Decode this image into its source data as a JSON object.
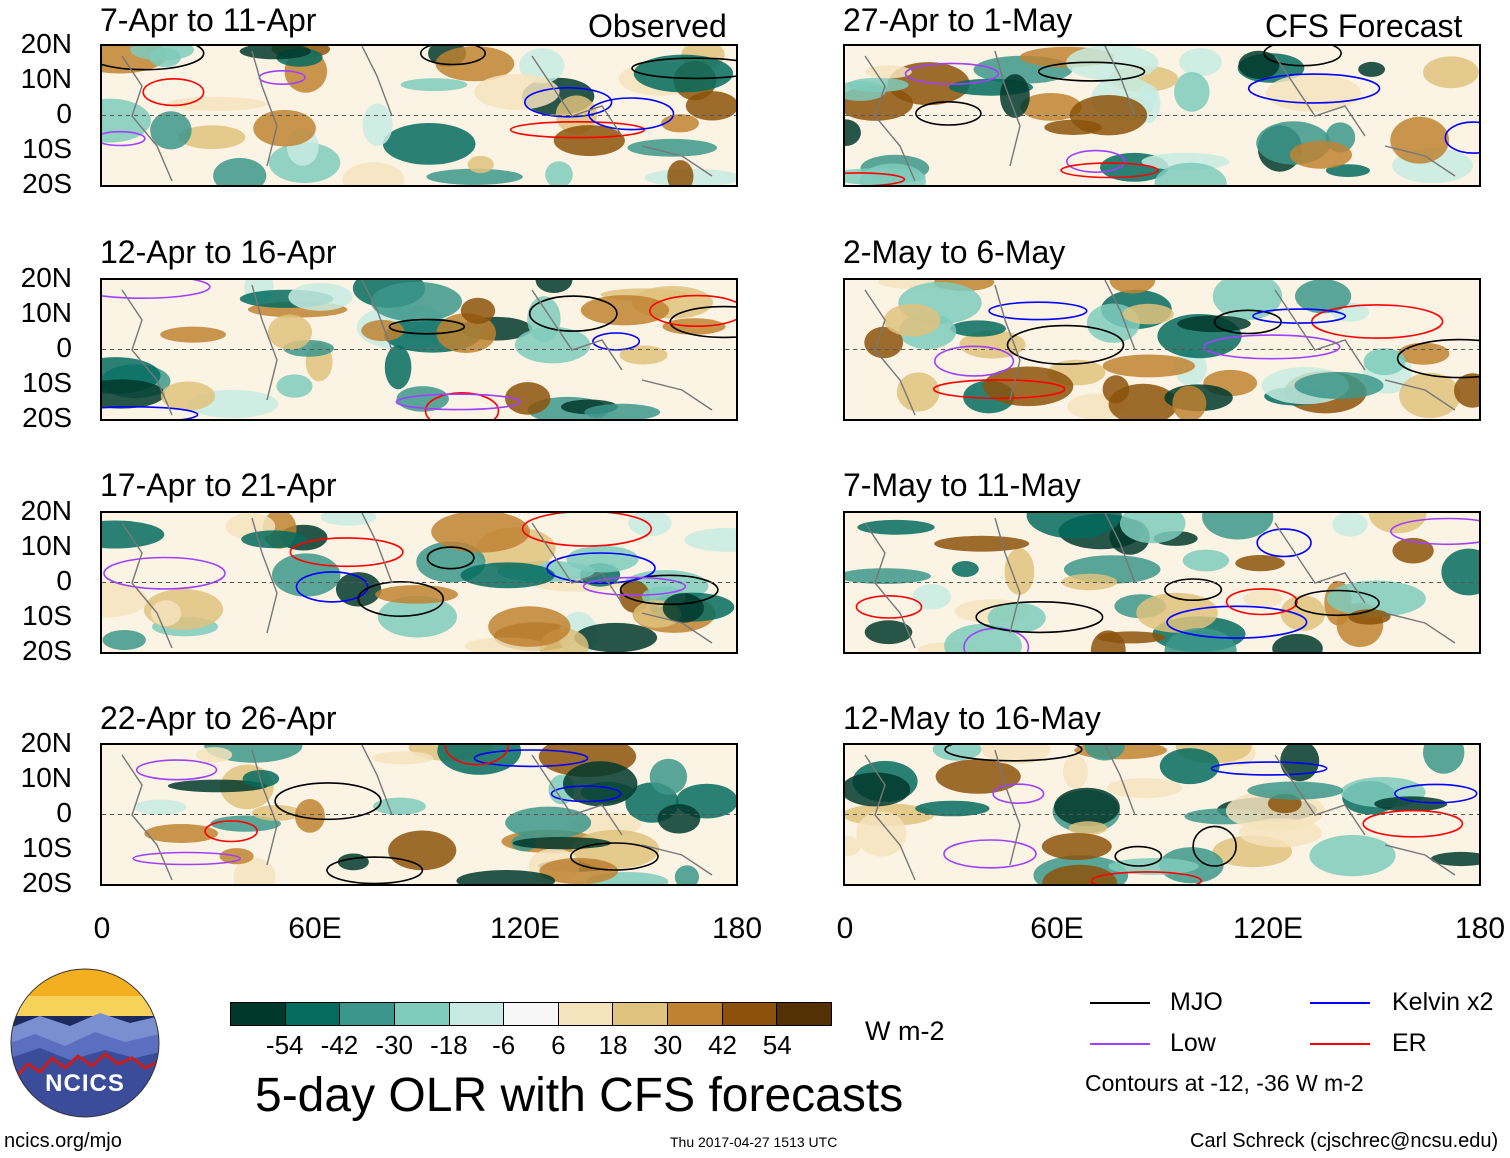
{
  "title": "5-day OLR with CFS forecasts",
  "units": "W m-2",
  "observed_label": "Observed",
  "forecast_label": "CFS Forecast",
  "panels_left": [
    {
      "date": "7-Apr to 11-Apr"
    },
    {
      "date": "12-Apr to 16-Apr"
    },
    {
      "date": "17-Apr to 21-Apr"
    },
    {
      "date": "22-Apr to 26-Apr"
    }
  ],
  "panels_right": [
    {
      "date": "27-Apr to 1-May"
    },
    {
      "date": "2-May to 6-May"
    },
    {
      "date": "7-May to 11-May"
    },
    {
      "date": "12-May to 16-May"
    }
  ],
  "lat_labels": [
    "20N",
    "10N",
    "0",
    "10S",
    "20S"
  ],
  "lon_labels": [
    "0",
    "60E",
    "120E",
    "180"
  ],
  "colorbar": {
    "labels": [
      "-54",
      "-42",
      "-30",
      "-18",
      "-6",
      "6",
      "18",
      "30",
      "42",
      "54"
    ],
    "colors": [
      "#01382c",
      "#046b5f",
      "#3c968b",
      "#7fcbbc",
      "#c7ebe2",
      "#f7f7f7",
      "#f5e3bd",
      "#dfc27d",
      "#bf8231",
      "#8c520a",
      "#543005"
    ]
  },
  "legend": {
    "items": [
      {
        "label": "MJO",
        "color": "#000000"
      },
      {
        "label": "Kelvin x2",
        "color": "#0000ff"
      },
      {
        "label": "Low",
        "color": "#a040ff"
      },
      {
        "label": "ER",
        "color": "#ff0000"
      }
    ],
    "note": "Contours at -12, -36 W m-2"
  },
  "logo_text": "NCICS",
  "footer": {
    "url": "ncics.org/mjo",
    "timestamp": "Thu 2017-04-27 1513 UTC",
    "author": "Carl Schreck (cjschrec@ncsu.edu)"
  }
}
